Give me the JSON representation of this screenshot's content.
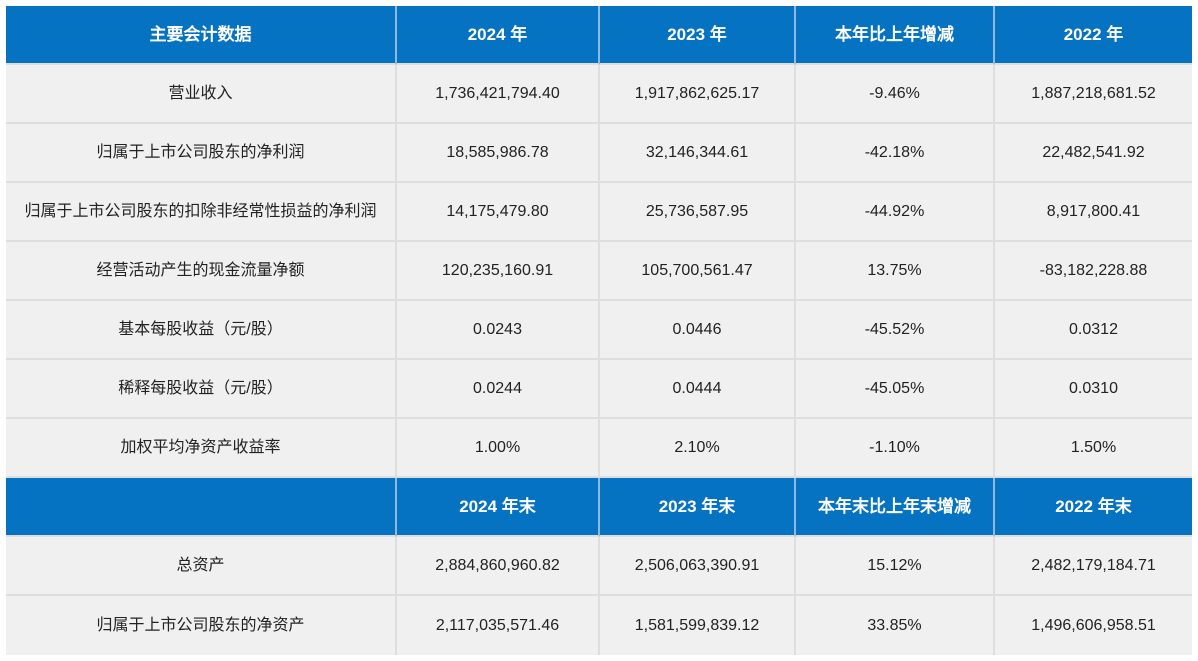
{
  "title": "主要会计数据",
  "colors": {
    "header_bg": "#0672C2",
    "header_text": "#FFFFFF",
    "header_divider": "#8FB9E0",
    "row_bg": "#F0F0F1",
    "grid_line": "#DEDEDE",
    "body_text": "#222222",
    "page_bg": "#FFFFFF"
  },
  "chart_data": [
    {
      "type": "table",
      "title": "主要会计数据（年度）",
      "columns": [
        "主要会计数据",
        "2024 年",
        "2023 年",
        "本年比上年增减",
        "2022 年"
      ],
      "rows": [
        [
          "营业收入",
          "1,736,421,794.40",
          "1,917,862,625.17",
          "-9.46%",
          "1,887,218,681.52"
        ],
        [
          "归属于上市公司股东的净利润",
          "18,585,986.78",
          "32,146,344.61",
          "-42.18%",
          "22,482,541.92"
        ],
        [
          "归属于上市公司股东的扣除非经常性损益的净利润",
          "14,175,479.80",
          "25,736,587.95",
          "-44.92%",
          "8,917,800.41"
        ],
        [
          "经营活动产生的现金流量净额",
          "120,235,160.91",
          "105,700,561.47",
          "13.75%",
          "-83,182,228.88"
        ],
        [
          "基本每股收益（元/股）",
          "0.0243",
          "0.0446",
          "-45.52%",
          "0.0312"
        ],
        [
          "稀释每股收益（元/股）",
          "0.0244",
          "0.0444",
          "-45.05%",
          "0.0310"
        ],
        [
          "加权平均净资产收益率",
          "1.00%",
          "2.10%",
          "-1.10%",
          "1.50%"
        ]
      ]
    },
    {
      "type": "table",
      "title": "主要会计数据（年末）",
      "columns": [
        "",
        "2024 年末",
        "2023 年末",
        "本年末比上年末增减",
        "2022 年末"
      ],
      "rows": [
        [
          "总资产",
          "2,884,860,960.82",
          "2,506,063,390.91",
          "15.12%",
          "2,482,179,184.71"
        ],
        [
          "归属于上市公司股东的净资产",
          "2,117,035,571.46",
          "1,581,599,839.12",
          "33.85%",
          "1,496,606,958.51"
        ]
      ]
    }
  ]
}
